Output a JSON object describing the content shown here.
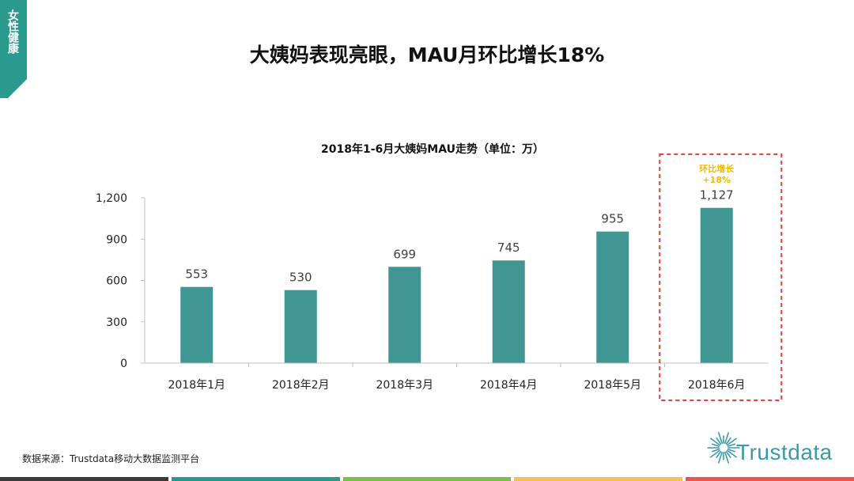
{
  "side_tab": {
    "label": "女性健康",
    "color": "#2a9a8f"
  },
  "title": "大姨妈表现亮眼，MAU月环比增长18%",
  "chart_data": {
    "type": "bar",
    "title": "2018年1-6月大姨妈MAU走势（单位：万）",
    "categories": [
      "2018年1月",
      "2018年2月",
      "2018年3月",
      "2018年4月",
      "2018年5月",
      "2018年6月"
    ],
    "values": [
      553,
      530,
      699,
      745,
      955,
      1127
    ],
    "value_labels": [
      "553",
      "530",
      "699",
      "745",
      "955",
      "1,127"
    ],
    "yticks": [
      "0",
      "300",
      "600",
      "900",
      "1,200"
    ],
    "ylim": [
      0,
      1200
    ],
    "bar_color": "#3f9693",
    "highlight": {
      "category": "2018年6月",
      "label_line1": "环比增长",
      "label_line2": "+18%",
      "label_color": "#f2b800",
      "box_color": "#e8413b"
    }
  },
  "source": "数据来源：Trustdata移动大数据监测平台",
  "logo": {
    "text": "Trustdata",
    "color": "#3a9aa8"
  },
  "bottom_bar_colors": [
    "#3b3b3b",
    "#2a9a8f",
    "#7dbd4a",
    "#f3c05a",
    "#e8574a"
  ]
}
